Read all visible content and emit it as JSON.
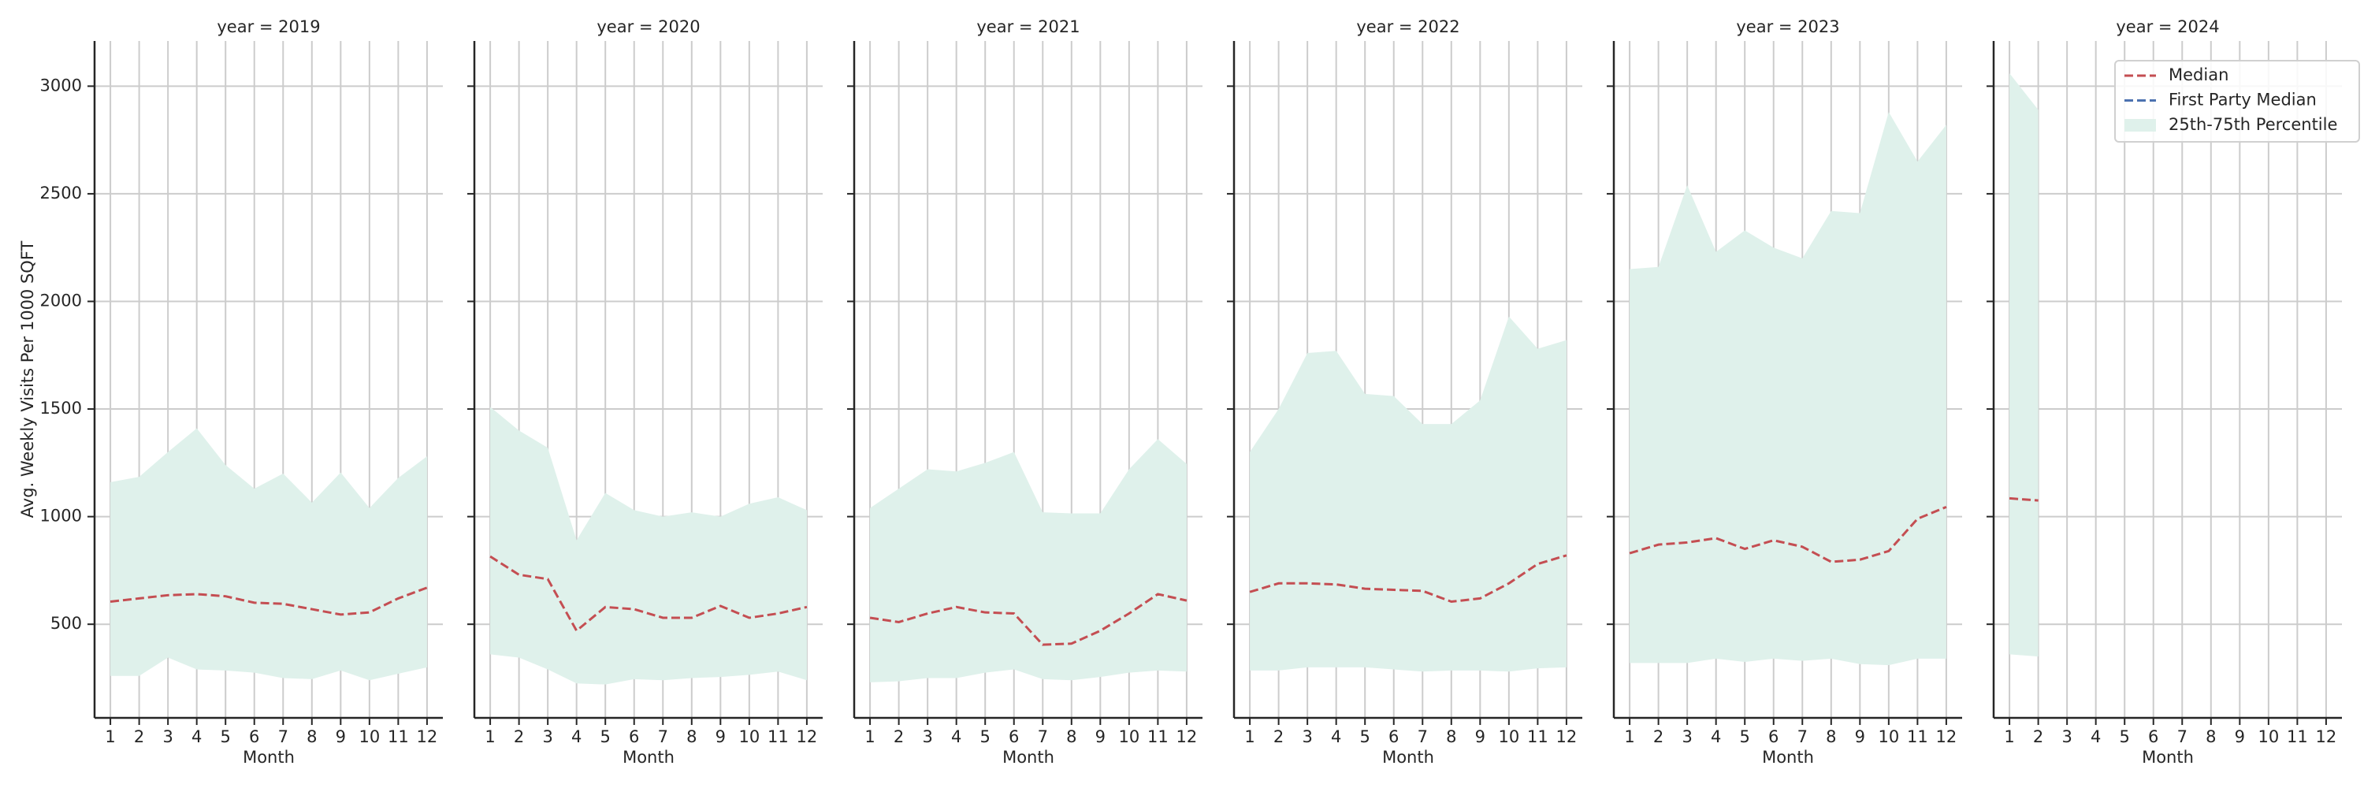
{
  "chart_data": [
    {
      "type": "line",
      "title": "year = 2019",
      "xlabel": "Month",
      "ylabel": "Avg. Weekly Visits Per 1000 SQFT",
      "x": [
        1,
        2,
        3,
        4,
        5,
        6,
        7,
        8,
        9,
        10,
        11,
        12
      ],
      "xlim": [
        0.45,
        12.55
      ],
      "xticks": [
        1,
        2,
        3,
        4,
        5,
        6,
        7,
        8,
        9,
        10,
        11,
        12
      ],
      "ylim": [
        65,
        3210
      ],
      "yticks": [
        500,
        1000,
        1500,
        2000,
        2500,
        3000
      ],
      "grid": true,
      "series": [
        {
          "name": "Median",
          "color": "#c44e52",
          "values": [
            605,
            620,
            635,
            640,
            630,
            600,
            595,
            570,
            545,
            555,
            620,
            670
          ]
        },
        {
          "name": "First Party Median",
          "color": "#4c72b0",
          "values": [
            null,
            null,
            null,
            null,
            null,
            null,
            null,
            null,
            null,
            null,
            null,
            null
          ]
        },
        {
          "name": "25th-75th Percentile",
          "type": "band",
          "color": "#dff1eb",
          "lower": [
            260,
            260,
            345,
            290,
            285,
            275,
            250,
            245,
            285,
            240,
            270,
            300
          ],
          "upper": [
            1160,
            1185,
            1300,
            1410,
            1240,
            1130,
            1200,
            1065,
            1205,
            1040,
            1180,
            1280
          ]
        }
      ]
    },
    {
      "type": "line",
      "title": "year = 2020",
      "xlabel": "Month",
      "x": [
        1,
        2,
        3,
        4,
        5,
        6,
        7,
        8,
        9,
        10,
        11,
        12
      ],
      "xlim": [
        0.45,
        12.55
      ],
      "xticks": [
        1,
        2,
        3,
        4,
        5,
        6,
        7,
        8,
        9,
        10,
        11,
        12
      ],
      "ylim": [
        65,
        3210
      ],
      "yticks": [
        500,
        1000,
        1500,
        2000,
        2500,
        3000
      ],
      "grid": true,
      "series": [
        {
          "name": "Median",
          "color": "#c44e52",
          "values": [
            815,
            730,
            710,
            470,
            580,
            570,
            530,
            530,
            585,
            530,
            550,
            580
          ]
        },
        {
          "name": "First Party Median",
          "color": "#4c72b0",
          "values": [
            null,
            null,
            null,
            null,
            null,
            null,
            null,
            null,
            null,
            null,
            null,
            null
          ]
        },
        {
          "name": "25th-75th Percentile",
          "type": "band",
          "color": "#dff1eb",
          "lower": [
            360,
            345,
            290,
            225,
            220,
            245,
            240,
            250,
            255,
            265,
            280,
            240
          ],
          "upper": [
            1510,
            1400,
            1320,
            890,
            1110,
            1030,
            1000,
            1020,
            1000,
            1060,
            1090,
            1030
          ]
        }
      ]
    },
    {
      "type": "line",
      "title": "year = 2021",
      "xlabel": "Month",
      "x": [
        1,
        2,
        3,
        4,
        5,
        6,
        7,
        8,
        9,
        10,
        11,
        12
      ],
      "xlim": [
        0.45,
        12.55
      ],
      "xticks": [
        1,
        2,
        3,
        4,
        5,
        6,
        7,
        8,
        9,
        10,
        11,
        12
      ],
      "ylim": [
        65,
        3210
      ],
      "yticks": [
        500,
        1000,
        1500,
        2000,
        2500,
        3000
      ],
      "grid": true,
      "series": [
        {
          "name": "Median",
          "color": "#c44e52",
          "values": [
            530,
            510,
            550,
            580,
            555,
            550,
            405,
            410,
            470,
            550,
            640,
            610
          ]
        },
        {
          "name": "First Party Median",
          "color": "#4c72b0",
          "values": [
            null,
            null,
            null,
            null,
            null,
            null,
            null,
            null,
            null,
            null,
            null,
            null
          ]
        },
        {
          "name": "25th-75th Percentile",
          "type": "band",
          "color": "#dff1eb",
          "lower": [
            230,
            235,
            250,
            250,
            275,
            290,
            245,
            240,
            255,
            275,
            285,
            280
          ],
          "upper": [
            1040,
            1130,
            1220,
            1210,
            1250,
            1300,
            1020,
            1015,
            1015,
            1220,
            1360,
            1245
          ]
        }
      ]
    },
    {
      "type": "line",
      "title": "year = 2022",
      "xlabel": "Month",
      "x": [
        1,
        2,
        3,
        4,
        5,
        6,
        7,
        8,
        9,
        10,
        11,
        12
      ],
      "xlim": [
        0.45,
        12.55
      ],
      "xticks": [
        1,
        2,
        3,
        4,
        5,
        6,
        7,
        8,
        9,
        10,
        11,
        12
      ],
      "ylim": [
        65,
        3210
      ],
      "yticks": [
        500,
        1000,
        1500,
        2000,
        2500,
        3000
      ],
      "grid": true,
      "series": [
        {
          "name": "Median",
          "color": "#c44e52",
          "values": [
            650,
            690,
            690,
            685,
            665,
            660,
            655,
            605,
            620,
            690,
            780,
            820
          ]
        },
        {
          "name": "First Party Median",
          "color": "#4c72b0",
          "values": [
            null,
            null,
            null,
            null,
            null,
            null,
            null,
            null,
            null,
            null,
            null,
            null
          ]
        },
        {
          "name": "25th-75th Percentile",
          "type": "band",
          "color": "#dff1eb",
          "lower": [
            285,
            285,
            300,
            300,
            300,
            290,
            280,
            285,
            285,
            280,
            295,
            300
          ],
          "upper": [
            1300,
            1500,
            1760,
            1770,
            1570,
            1560,
            1430,
            1430,
            1540,
            1930,
            1780,
            1820
          ]
        }
      ]
    },
    {
      "type": "line",
      "title": "year = 2023",
      "xlabel": "Month",
      "x": [
        1,
        2,
        3,
        4,
        5,
        6,
        7,
        8,
        9,
        10,
        11,
        12
      ],
      "xlim": [
        0.45,
        12.55
      ],
      "xticks": [
        1,
        2,
        3,
        4,
        5,
        6,
        7,
        8,
        9,
        10,
        11,
        12
      ],
      "ylim": [
        65,
        3210
      ],
      "yticks": [
        500,
        1000,
        1500,
        2000,
        2500,
        3000
      ],
      "grid": true,
      "series": [
        {
          "name": "Median",
          "color": "#c44e52",
          "values": [
            830,
            870,
            880,
            900,
            850,
            890,
            860,
            790,
            800,
            840,
            990,
            1045
          ]
        },
        {
          "name": "First Party Median",
          "color": "#4c72b0",
          "values": [
            null,
            null,
            null,
            null,
            null,
            null,
            null,
            null,
            null,
            null,
            null,
            null
          ]
        },
        {
          "name": "25th-75th Percentile",
          "type": "band",
          "color": "#dff1eb",
          "lower": [
            320,
            320,
            320,
            340,
            325,
            340,
            330,
            340,
            315,
            310,
            340,
            340
          ],
          "upper": [
            2150,
            2160,
            2540,
            2230,
            2330,
            2250,
            2200,
            2420,
            2410,
            2880,
            2650,
            2820
          ]
        }
      ]
    },
    {
      "type": "line",
      "title": "year = 2024",
      "xlabel": "Month",
      "legend": "upper right",
      "x": [
        1,
        2,
        3,
        4,
        5,
        6,
        7,
        8,
        9,
        10,
        11,
        12
      ],
      "xlim": [
        0.45,
        12.55
      ],
      "xticks": [
        1,
        2,
        3,
        4,
        5,
        6,
        7,
        8,
        9,
        10,
        11,
        12
      ],
      "ylim": [
        65,
        3210
      ],
      "yticks": [
        500,
        1000,
        1500,
        2000,
        2500,
        3000
      ],
      "grid": true,
      "series": [
        {
          "name": "Median",
          "color": "#c44e52",
          "values": [
            1085,
            1075,
            null,
            null,
            null,
            null,
            null,
            null,
            null,
            null,
            null,
            null
          ]
        },
        {
          "name": "First Party Median",
          "color": "#4c72b0",
          "values": [
            null,
            null,
            null,
            null,
            null,
            null,
            null,
            null,
            null,
            null,
            null,
            null
          ]
        },
        {
          "name": "25th-75th Percentile",
          "type": "band",
          "color": "#dff1eb",
          "lower": [
            360,
            350,
            null,
            null,
            null,
            null,
            null,
            null,
            null,
            null,
            null,
            null
          ],
          "upper": [
            3060,
            2890,
            null,
            null,
            null,
            null,
            null,
            null,
            null,
            null,
            null,
            null
          ]
        }
      ]
    }
  ]
}
